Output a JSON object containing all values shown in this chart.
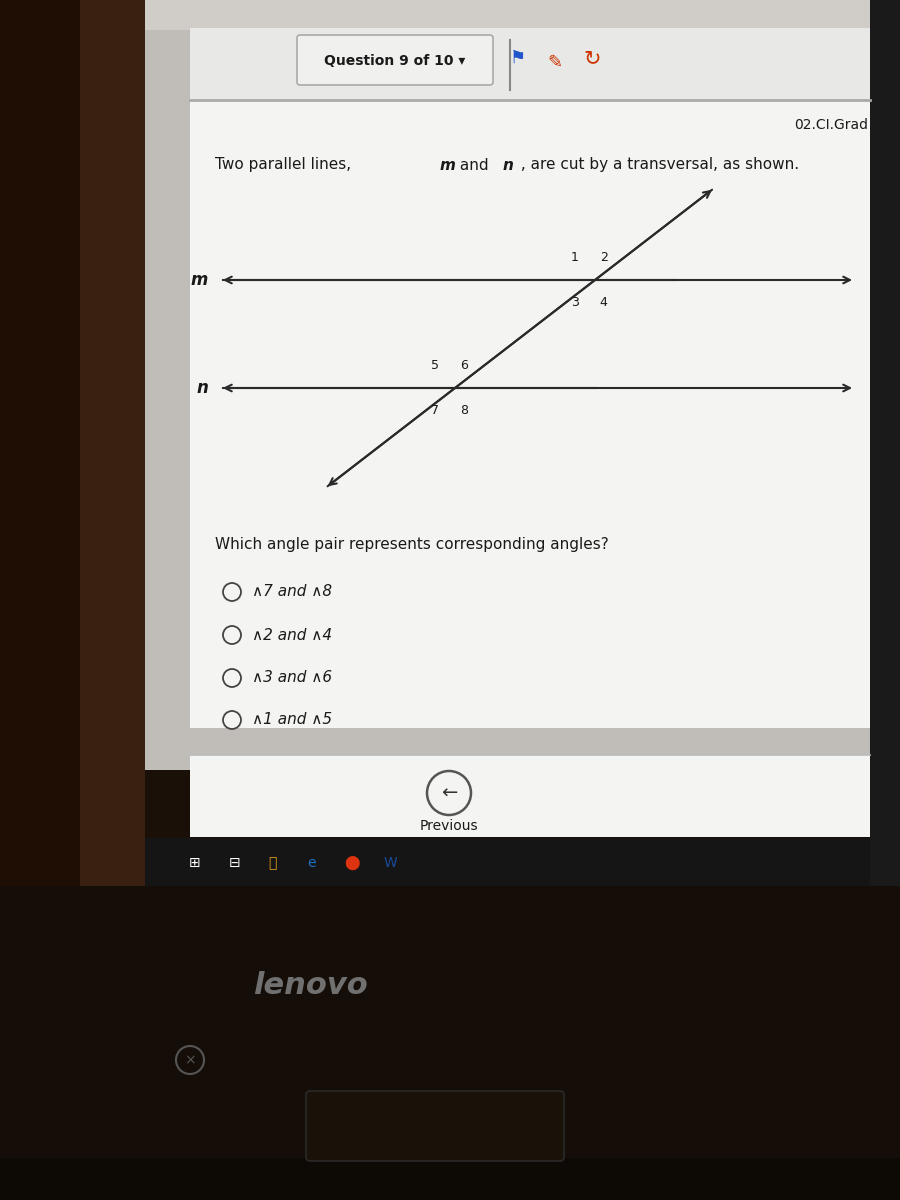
{
  "bg_outer": "#1a1008",
  "bg_left_bezel": "#2a1a0a",
  "bg_screen": "#c0bdb8",
  "bg_content": "#ebebeb",
  "bg_white": "#f4f4f2",
  "header_bg": "#e8e8e6",
  "question_header": "Question 9 of 10 ▾",
  "grade_label": "02.CI.Grad",
  "problem_text_plain": "Two parallel lines,  ",
  "problem_m": "m",
  "problem_and": " and  ",
  "problem_n": "n",
  "problem_rest": " , are cut by a transversal, as shown.",
  "question_text": "Which angle pair represents corresponding angles?",
  "options": [
    "∧7 and ∧8",
    "∧2 and ∧4",
    "∧3 and ∧6",
    "∧1 and ∧5"
  ],
  "line_m_label": "m",
  "line_n_label": "n",
  "line_color": "#2a2a2a",
  "text_color": "#1a1a1a",
  "radio_color": "#444444",
  "taskbar_color": "#151515",
  "previous_btn": "Previous",
  "lenovo_text": "lenovo",
  "lenovo_color": "#707070"
}
